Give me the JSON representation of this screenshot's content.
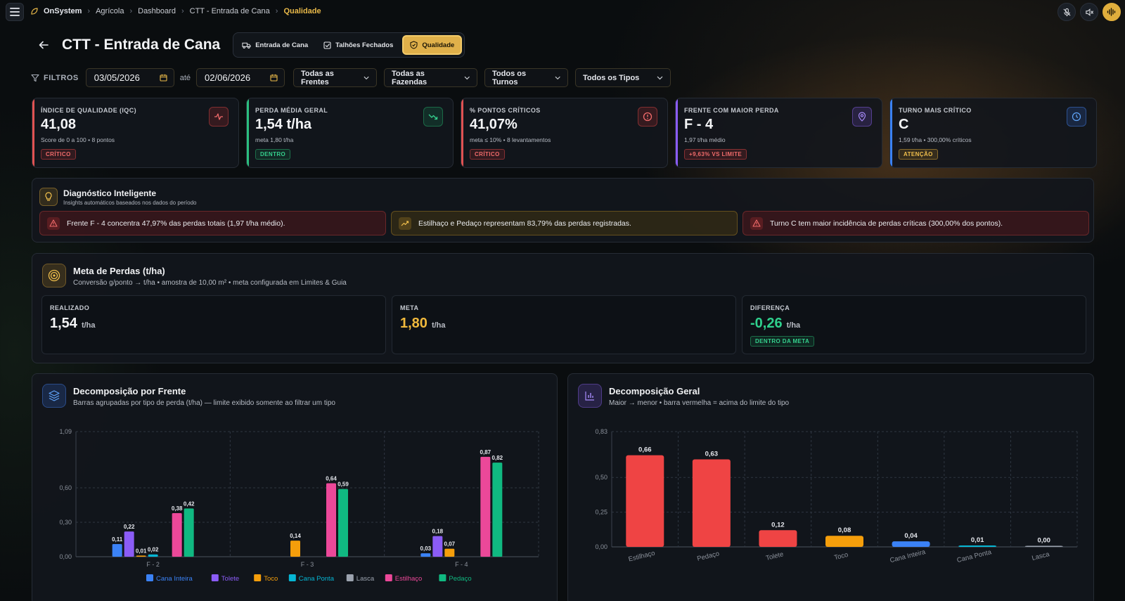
{
  "breadcrumb": [
    "OnSystem",
    "Agrícola",
    "Dashboard",
    "CTT - Entrada de Cana",
    "Qualidade"
  ],
  "page_title": "CTT - Entrada de Cana",
  "tabs": [
    {
      "label": "Entrada de Cana",
      "icon": "truck-icon",
      "selected": false
    },
    {
      "label": "Talhões Fechados",
      "icon": "checkbox-icon",
      "selected": false
    },
    {
      "label": "Qualidade",
      "icon": "shield-check-icon",
      "selected": true
    }
  ],
  "filters": {
    "label": "FILTROS",
    "date_from": "03/05/2026",
    "separator": "até",
    "date_to": "02/06/2026",
    "frentes": "Todas as Frentes",
    "fazendas": "Todas as Fazendas",
    "turnos": "Todos os Turnos",
    "tipos": "Todos os Tipos"
  },
  "kpis": [
    {
      "label": "ÍNDICE DE QUALIDADE (IQC)",
      "value": "41,08",
      "sub": "Score de 0 a 100 • 8 pontos",
      "badge": "CRÍTICO",
      "tone": "red",
      "accent": "#e05252",
      "icon": "activity-icon"
    },
    {
      "label": "PERDA MÉDIA GERAL",
      "value": "1,54 t/ha",
      "sub": "meta 1,80 t/ha",
      "badge": "DENTRO",
      "tone": "green",
      "accent": "#2bbf7f",
      "icon": "trending-down-icon"
    },
    {
      "label": "% PONTOS CRÍTICOS",
      "value": "41,07%",
      "sub": "meta ≤ 10% • 8 levantamentos",
      "badge": "CRÍTICO",
      "tone": "red",
      "accent": "#e05252",
      "icon": "alert-circle-icon"
    },
    {
      "label": "FRENTE COM MAIOR PERDA",
      "value": "F - 4",
      "sub": "1,97 t/ha médio",
      "badge": "+9,63% VS LIMITE",
      "tone": "red",
      "accent": "#8b5cf6",
      "icon": "map-pin-icon"
    },
    {
      "label": "TURNO MAIS CRÍTICO",
      "value": "C",
      "sub": "1,59 t/ha • 300,00% críticos",
      "badge": "ATENÇÃO",
      "tone": "amber",
      "accent": "#3b82f6",
      "icon": "clock-icon"
    }
  ],
  "diagnostic": {
    "title": "Diagnóstico Inteligente",
    "subtitle": "Insights automáticos baseados nos dados do período",
    "insights": [
      {
        "text": "Frente F - 4 concentra 47,97% das perdas totais (1,97 t/ha médio).",
        "tone": "red"
      },
      {
        "text": "Estilhaço e Pedaço representam 83,79% das perdas registradas.",
        "tone": "amber"
      },
      {
        "text": "Turno C tem maior incidência de perdas críticas (300,00% dos pontos).",
        "tone": "red"
      }
    ]
  },
  "meta_perdas": {
    "title": "Meta de Perdas (t/ha)",
    "subtitle": "Conversão g/ponto → t/ha • amostra de 10,00 m² • meta configurada em Limites & Guia",
    "cards": [
      {
        "label": "REALIZADO",
        "value": "1,54",
        "unit": "t/ha",
        "color": "#f4f5f7",
        "badge": ""
      },
      {
        "label": "META",
        "value": "1,80",
        "unit": "t/ha",
        "color": "#f0b93c",
        "badge": ""
      },
      {
        "label": "DIFERENÇA",
        "value": "-0,26",
        "unit": "t/ha",
        "color": "#2fd08d",
        "badge": "DENTRO DA META"
      }
    ]
  },
  "chart_frente_header": {
    "title": "Decomposição por Frente",
    "subtitle": "Barras agrupadas por tipo de perda (t/ha) — limite exibido somente ao filtrar um tipo"
  },
  "chart_geral_header": {
    "title": "Decomposição Geral",
    "subtitle": "Maior → menor • barra vermelha = acima do limite do tipo"
  },
  "chart_data": [
    {
      "type": "bar",
      "title": "Decomposição por Frente",
      "categories": [
        "F - 2",
        "F - 3",
        "F - 4"
      ],
      "ylim": [
        0,
        1.09
      ],
      "yticks": [
        "0,00",
        "0,30",
        "0,60",
        "1,09"
      ],
      "ytick_values": [
        0,
        0.3,
        0.6,
        1.09
      ],
      "grid": true,
      "legend": "bottom",
      "series": [
        {
          "name": "Cana Inteira",
          "color": "#3b82f6",
          "values": [
            0.11,
            null,
            0.03
          ],
          "labels": [
            "0,11",
            "",
            "0,03"
          ]
        },
        {
          "name": "Tolete",
          "color": "#8b5cf6",
          "values": [
            0.22,
            null,
            0.18
          ],
          "labels": [
            "0,22",
            "",
            "0,18"
          ]
        },
        {
          "name": "Toco",
          "color": "#f59e0b",
          "values": [
            0.01,
            0.14,
            0.07
          ],
          "labels": [
            "0,01",
            "0,14",
            "0,07"
          ]
        },
        {
          "name": "Cana Ponta",
          "color": "#06b6d4",
          "values": [
            0.02,
            null,
            null
          ],
          "labels": [
            "0,02",
            "",
            ""
          ]
        },
        {
          "name": "Lasca",
          "color": "#9ca3af",
          "values": [
            null,
            null,
            null
          ],
          "labels": [
            "",
            "",
            ""
          ]
        },
        {
          "name": "Estilhaço",
          "color": "#ec4899",
          "values": [
            0.38,
            0.64,
            0.87
          ],
          "labels": [
            "0,38",
            "0,64",
            "0,87"
          ]
        },
        {
          "name": "Pedaço",
          "color": "#10b981",
          "values": [
            0.42,
            0.59,
            0.82
          ],
          "labels": [
            "0,42",
            "0,59",
            "0,82"
          ]
        }
      ]
    },
    {
      "type": "bar",
      "title": "Decomposição Geral",
      "categories": [
        "Estilhaço",
        "Pedaço",
        "Tolete",
        "Toco",
        "Cana Inteira",
        "Cana Ponta",
        "Lasca"
      ],
      "values": [
        0.66,
        0.63,
        0.12,
        0.08,
        0.04,
        0.01,
        0.0
      ],
      "labels": [
        "0,66",
        "0,63",
        "0,12",
        "0,08",
        "0,04",
        "0,01",
        "0,00"
      ],
      "colors": [
        "#ef4444",
        "#ef4444",
        "#ef4444",
        "#f59e0b",
        "#3b82f6",
        "#06b6d4",
        "#9ca3af"
      ],
      "ylim": [
        0,
        0.83
      ],
      "yticks": [
        "0,00",
        "0,25",
        "0,50",
        "0,83"
      ],
      "ytick_values": [
        0,
        0.25,
        0.5,
        0.83
      ],
      "grid": true
    }
  ]
}
